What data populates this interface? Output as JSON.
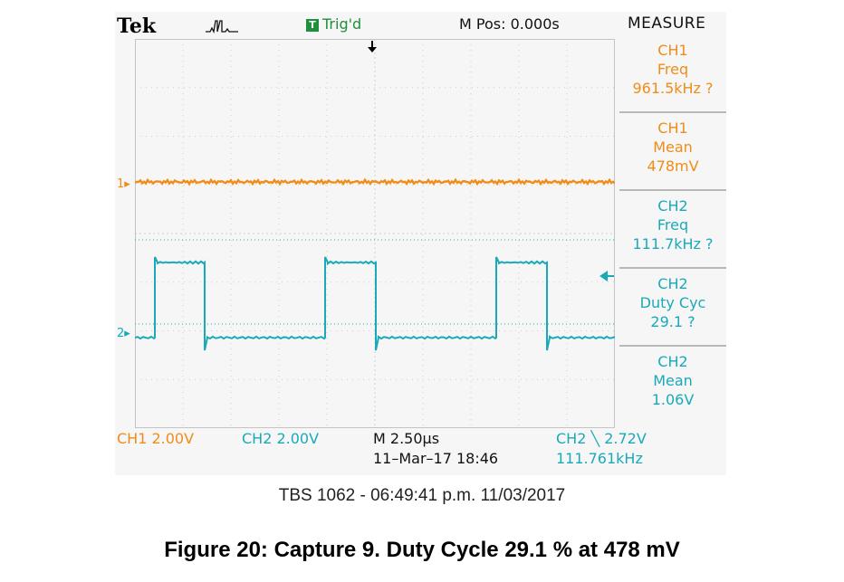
{
  "header": {
    "brand": "Tek",
    "trigger_badge": "T",
    "trigger_status": "Trig'd",
    "main_position": "M Pos: 0.000s",
    "measure_title": "MEASURE"
  },
  "measurements": [
    {
      "channel": "CH1",
      "type": "Freq",
      "value": "961.5kHz ?"
    },
    {
      "channel": "CH1",
      "type": "Mean",
      "value": "478mV"
    },
    {
      "channel": "CH2",
      "type": "Freq",
      "value": "111.7kHz ?"
    },
    {
      "channel": "CH2",
      "type": "Duty Cyc",
      "value": "29.1 ?"
    },
    {
      "channel": "CH2",
      "type": "Mean",
      "value": "1.06V"
    }
  ],
  "markers": {
    "ch1": "1",
    "ch2": "2"
  },
  "footer": {
    "ch1_scale": "CH1  2.00V",
    "ch2_scale": "CH2  2.00V",
    "timebase": "M 2.50µs",
    "datetime": "11–Mar–17 18:46",
    "trigger": "CH2 ╲ 2.72V",
    "trigger_freq": "111.761kHz"
  },
  "caption": "TBS 1062 - 06:49:41 p.m.   11/03/2017",
  "figure_caption": "Figure 20: Capture 9. Duty Cycle 29.1 % at 478 mV",
  "colors": {
    "ch1": "#f08c18",
    "ch2": "#19aaba",
    "trigger": "#1e8f3a"
  }
}
